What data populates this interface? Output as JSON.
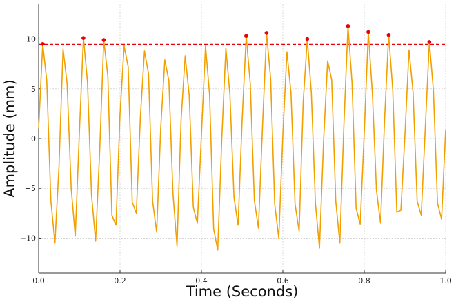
{
  "chart_data": {
    "type": "line",
    "title": "",
    "xlabel": "Time (Seconds)",
    "ylabel": "Amplitude (mm)",
    "xlim": [
      0,
      1.0
    ],
    "ylim": [
      -13.5,
      13.5
    ],
    "xticks": [
      0.0,
      0.2,
      0.4,
      0.6,
      0.8,
      1.0
    ],
    "xtick_labels": [
      "0.0",
      "0.2",
      "0.4",
      "0.6",
      "0.8",
      "1.0"
    ],
    "yticks": [
      -10,
      -5,
      0,
      5,
      10
    ],
    "ytick_labels": [
      "−10",
      "−5",
      "0",
      "5",
      "10"
    ],
    "grid": true,
    "line_color": "#f2a000",
    "peak_color": "#e8000b",
    "threshold_color": "#e8000b",
    "threshold": 9.45,
    "series": [
      {
        "x": [
          0.0,
          0.01,
          0.02,
          0.03,
          0.04,
          0.05,
          0.06,
          0.07,
          0.08,
          0.09,
          0.1,
          0.11,
          0.12,
          0.13,
          0.14,
          0.15,
          0.16,
          0.17,
          0.18,
          0.19,
          0.2,
          0.21,
          0.22,
          0.23,
          0.24,
          0.25,
          0.26,
          0.27,
          0.28,
          0.29,
          0.3,
          0.31,
          0.32,
          0.33,
          0.34,
          0.35,
          0.36,
          0.37,
          0.38,
          0.39,
          0.4,
          0.41,
          0.42,
          0.43,
          0.44,
          0.45,
          0.46,
          0.47,
          0.48,
          0.49,
          0.5,
          0.51,
          0.52,
          0.53,
          0.54,
          0.55,
          0.56,
          0.57,
          0.58,
          0.59,
          0.6,
          0.61,
          0.62,
          0.63,
          0.64,
          0.65,
          0.66,
          0.67,
          0.68,
          0.69,
          0.7,
          0.71,
          0.72,
          0.73,
          0.74,
          0.75,
          0.76,
          0.77,
          0.78,
          0.79,
          0.8,
          0.81,
          0.82,
          0.83,
          0.84,
          0.85,
          0.86,
          0.87,
          0.88,
          0.89,
          0.9,
          0.91,
          0.92,
          0.93,
          0.94,
          0.95,
          0.96,
          0.97,
          0.98,
          0.99,
          1.0
        ],
        "y": [
          1.0,
          9.5,
          5.8,
          -6.2,
          -10.5,
          -2.8,
          9.0,
          5.5,
          -5.0,
          -9.8,
          0.5,
          10.1,
          5.7,
          -5.7,
          -10.3,
          -1.2,
          9.9,
          6.3,
          -7.7,
          -8.7,
          2.5,
          9.3,
          7.2,
          -6.4,
          -7.5,
          2.2,
          8.8,
          6.5,
          -6.3,
          -9.4,
          1.1,
          7.9,
          5.8,
          -5.5,
          -10.8,
          1.9,
          8.3,
          4.3,
          -6.9,
          -8.5,
          0.4,
          9.3,
          4.4,
          -9.1,
          -11.2,
          0.0,
          9.1,
          4.4,
          -5.9,
          -8.7,
          1.9,
          10.3,
          5.5,
          -6.2,
          -9.0,
          1.2,
          10.6,
          6.0,
          -6.6,
          -10.0,
          0.4,
          8.7,
          4.6,
          -6.6,
          -9.3,
          3.7,
          10.0,
          4.6,
          -6.5,
          -11.0,
          -0.3,
          7.8,
          5.9,
          -6.3,
          -10.5,
          1.4,
          11.3,
          5.6,
          -7.0,
          -8.6,
          0.6,
          10.7,
          4.5,
          -5.2,
          -8.5,
          2.0,
          10.4,
          4.9,
          -7.4,
          -7.2,
          0.4,
          8.9,
          4.6,
          -6.3,
          -7.7,
          1.1,
          9.7,
          4.8,
          -6.5,
          -8.1,
          0.9
        ]
      }
    ],
    "peaks": {
      "x": [
        0.01,
        0.11,
        0.16,
        0.51,
        0.56,
        0.66,
        0.76,
        0.81,
        0.86,
        0.96
      ],
      "y": [
        9.5,
        10.1,
        9.9,
        10.3,
        10.6,
        10.0,
        11.3,
        10.7,
        10.4,
        9.7
      ]
    }
  }
}
